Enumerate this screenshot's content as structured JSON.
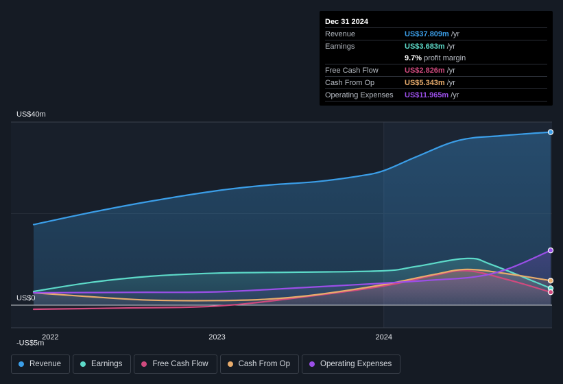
{
  "chart_data": {
    "type": "area",
    "title": "",
    "xlabel": "",
    "ylabel": "",
    "y_unit_prefix": "US$",
    "ylim": [
      -5,
      40
    ],
    "xlim": [
      2021.9,
      2025.0
    ],
    "y_tick_labels": [
      {
        "value": 40,
        "label": "US$40m"
      },
      {
        "value": 0,
        "label": "US$0"
      },
      {
        "value": -5,
        "label": "-US$5m"
      }
    ],
    "x_tick_labels": [
      {
        "value": 2022.0,
        "label": "2022"
      },
      {
        "value": 2023.0,
        "label": "2023"
      },
      {
        "value": 2024.0,
        "label": "2024"
      }
    ],
    "forecast_start": 2024.0,
    "series": [
      {
        "name": "Revenue",
        "color": "#3b9ee8",
        "points": [
          [
            2021.9,
            17.6
          ],
          [
            2022.25,
            20.3
          ],
          [
            2022.6,
            22.7
          ],
          [
            2023.0,
            25.0
          ],
          [
            2023.3,
            26.2
          ],
          [
            2023.6,
            27.0
          ],
          [
            2023.85,
            28.2
          ],
          [
            2024.0,
            29.4
          ],
          [
            2024.2,
            32.5
          ],
          [
            2024.45,
            36.0
          ],
          [
            2024.7,
            37.0
          ],
          [
            2025.0,
            37.809
          ]
        ]
      },
      {
        "name": "Earnings",
        "color": "#5ddac9",
        "points": [
          [
            2021.9,
            3.0
          ],
          [
            2022.25,
            5.0
          ],
          [
            2022.6,
            6.3
          ],
          [
            2023.0,
            7.0
          ],
          [
            2023.5,
            7.2
          ],
          [
            2024.0,
            7.5
          ],
          [
            2024.2,
            8.5
          ],
          [
            2024.5,
            10.2
          ],
          [
            2024.65,
            8.8
          ],
          [
            2025.0,
            3.683
          ]
        ]
      },
      {
        "name": "Free Cash Flow",
        "color": "#d04a7e",
        "points": [
          [
            2021.9,
            -0.9
          ],
          [
            2022.5,
            -0.6
          ],
          [
            2023.0,
            -0.2
          ],
          [
            2023.5,
            1.7
          ],
          [
            2024.0,
            4.2
          ],
          [
            2024.3,
            6.5
          ],
          [
            2024.5,
            7.5
          ],
          [
            2024.75,
            5.5
          ],
          [
            2025.0,
            2.826
          ]
        ]
      },
      {
        "name": "Cash From Op",
        "color": "#e8ac6c",
        "points": [
          [
            2021.9,
            2.7
          ],
          [
            2022.3,
            1.7
          ],
          [
            2022.6,
            1.1
          ],
          [
            2023.0,
            1.0
          ],
          [
            2023.3,
            1.3
          ],
          [
            2023.6,
            2.3
          ],
          [
            2024.0,
            4.5
          ],
          [
            2024.3,
            6.7
          ],
          [
            2024.5,
            7.8
          ],
          [
            2024.75,
            6.8
          ],
          [
            2025.0,
            5.343
          ]
        ]
      },
      {
        "name": "Operating Expenses",
        "color": "#9b4fe8",
        "points": [
          [
            2021.9,
            2.7
          ],
          [
            2022.5,
            2.8
          ],
          [
            2023.0,
            2.9
          ],
          [
            2023.5,
            3.8
          ],
          [
            2024.0,
            4.8
          ],
          [
            2024.3,
            5.5
          ],
          [
            2024.55,
            6.2
          ],
          [
            2024.75,
            8.0
          ],
          [
            2025.0,
            11.965
          ]
        ]
      }
    ]
  },
  "tooltip": {
    "date": "Dec 31 2024",
    "rows": [
      {
        "label": "Revenue",
        "value": "US$37.809m",
        "unit": "/yr",
        "color": "#3b9ee8"
      },
      {
        "label": "Earnings",
        "value": "US$3.683m",
        "unit": "/yr",
        "color": "#5ddac9"
      },
      {
        "label": "",
        "value": "9.7%",
        "unit": "profit margin",
        "color": "#ffffff"
      },
      {
        "label": "Free Cash Flow",
        "value": "US$2.826m",
        "unit": "/yr",
        "color": "#d04a7e"
      },
      {
        "label": "Cash From Op",
        "value": "US$5.343m",
        "unit": "/yr",
        "color": "#e8ac6c"
      },
      {
        "label": "Operating Expenses",
        "value": "US$11.965m",
        "unit": "/yr",
        "color": "#9b4fe8"
      }
    ]
  },
  "legend": [
    {
      "label": "Revenue",
      "color": "#3b9ee8"
    },
    {
      "label": "Earnings",
      "color": "#5ddac9"
    },
    {
      "label": "Free Cash Flow",
      "color": "#d04a7e"
    },
    {
      "label": "Cash From Op",
      "color": "#e8ac6c"
    },
    {
      "label": "Operating Expenses",
      "color": "#9b4fe8"
    }
  ]
}
